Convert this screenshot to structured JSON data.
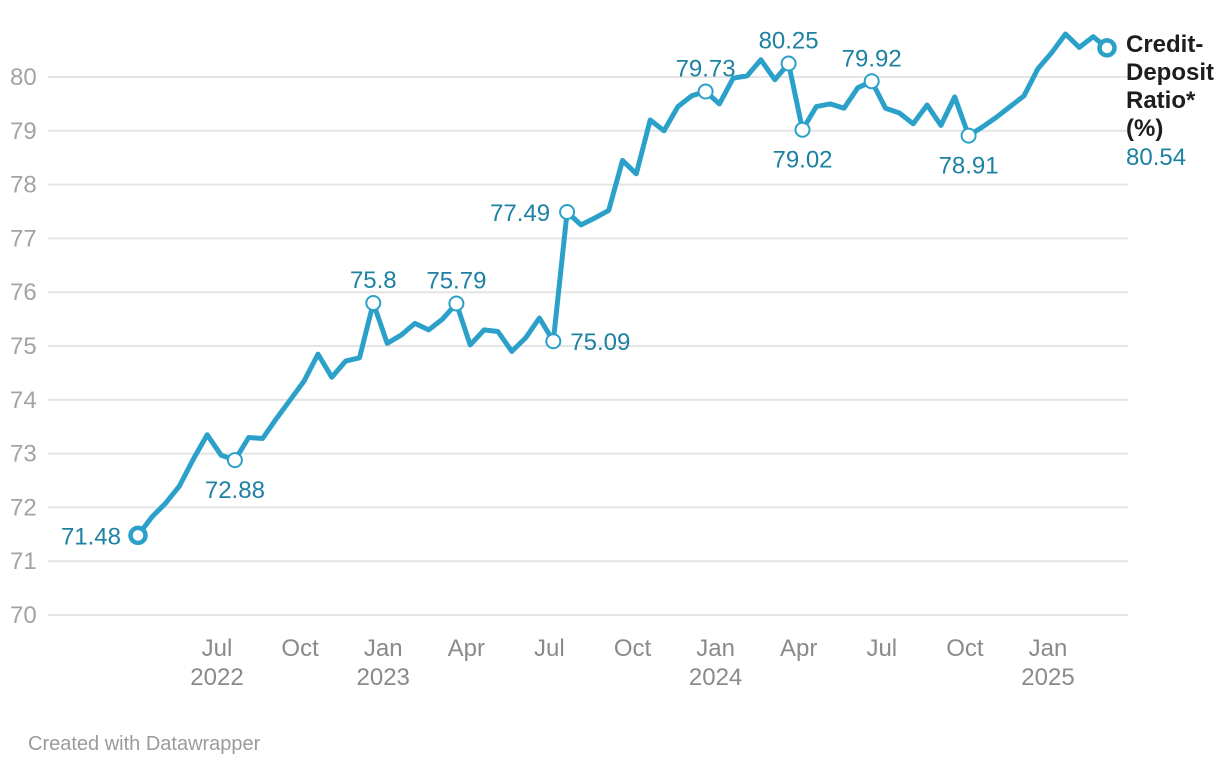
{
  "chart_data": {
    "type": "line",
    "title": "",
    "xlabel": "",
    "ylabel": "",
    "x_axis": {
      "start": "Apr 2022",
      "end": "Mar 2025",
      "frequency": "fortnightly",
      "tick_labels": [
        {
          "month": "Jul",
          "year": "2022"
        },
        {
          "month": "Oct",
          "year": ""
        },
        {
          "month": "Jan",
          "year": "2023"
        },
        {
          "month": "Apr",
          "year": ""
        },
        {
          "month": "Jul",
          "year": ""
        },
        {
          "month": "Oct",
          "year": ""
        },
        {
          "month": "Jan",
          "year": "2024"
        },
        {
          "month": "Apr",
          "year": ""
        },
        {
          "month": "Jul",
          "year": ""
        },
        {
          "month": "Oct",
          "year": ""
        },
        {
          "month": "Jan",
          "year": "2025"
        }
      ]
    },
    "y_axis": {
      "ticks": [
        70,
        71,
        72,
        73,
        74,
        75,
        76,
        77,
        78,
        79,
        80
      ],
      "range": [
        69.7,
        81.0
      ],
      "grid": true
    },
    "series": [
      {
        "name": "Credit-Deposit Ratio* (%)",
        "values": [
          71.48,
          71.82,
          72.08,
          72.4,
          72.9,
          73.35,
          72.97,
          72.88,
          73.3,
          73.28,
          73.65,
          74.0,
          74.35,
          74.85,
          74.42,
          74.72,
          74.78,
          75.8,
          75.05,
          75.2,
          75.42,
          75.3,
          75.5,
          75.79,
          75.02,
          75.3,
          75.27,
          74.9,
          75.15,
          75.52,
          75.09,
          77.49,
          77.25,
          77.38,
          77.52,
          78.45,
          78.2,
          79.2,
          79.0,
          79.45,
          79.65,
          79.73,
          79.5,
          79.98,
          80.02,
          80.32,
          79.95,
          80.25,
          79.02,
          79.45,
          79.5,
          79.42,
          79.8,
          79.92,
          79.42,
          79.33,
          79.13,
          79.48,
          79.1,
          79.63,
          78.91,
          79.07,
          79.25,
          79.45,
          79.65,
          80.15,
          80.45,
          80.8,
          80.55,
          80.75,
          80.54
        ]
      }
    ],
    "markers": [
      {
        "index": 0,
        "emphasis": true
      },
      {
        "index": 7,
        "emphasis": false
      },
      {
        "index": 17,
        "emphasis": false
      },
      {
        "index": 23,
        "emphasis": false
      },
      {
        "index": 30,
        "emphasis": false
      },
      {
        "index": 31,
        "emphasis": false
      },
      {
        "index": 41,
        "emphasis": false
      },
      {
        "index": 47,
        "emphasis": false
      },
      {
        "index": 48,
        "emphasis": false
      },
      {
        "index": 53,
        "emphasis": false
      },
      {
        "index": 60,
        "emphasis": false
      },
      {
        "index": 70,
        "emphasis": true
      }
    ],
    "annotations": [
      {
        "index": 0,
        "label": "71.48",
        "placement": "left"
      },
      {
        "index": 7,
        "label": "72.88",
        "placement": "below"
      },
      {
        "index": 17,
        "label": "75.8",
        "placement": "above"
      },
      {
        "index": 23,
        "label": "75.79",
        "placement": "above"
      },
      {
        "index": 30,
        "label": "75.09",
        "placement": "right"
      },
      {
        "index": 31,
        "label": "77.49",
        "placement": "left"
      },
      {
        "index": 41,
        "label": "79.73",
        "placement": "above"
      },
      {
        "index": 47,
        "label": "80.25",
        "placement": "above"
      },
      {
        "index": 48,
        "label": "79.02",
        "placement": "below"
      },
      {
        "index": 53,
        "label": "79.92",
        "placement": "above"
      },
      {
        "index": 60,
        "label": "78.91",
        "placement": "below"
      }
    ],
    "legend": {
      "label": "Credit-Deposit Ratio* (%)",
      "latest_value": "80.54",
      "position": "right of line end"
    },
    "footer": "Created with Datawrapper",
    "colors": {
      "line": "#2BA1C9",
      "value_labels": "#1D81A2",
      "legend_text": "#1d1d1d",
      "y_tick_text": "#a3a3a3",
      "x_tick_text": "#8a8a8a",
      "gridline": "#e4e4e4",
      "marker_fill": "#ffffff",
      "background": "#ffffff",
      "footer_text": "#9b9b9b"
    }
  }
}
